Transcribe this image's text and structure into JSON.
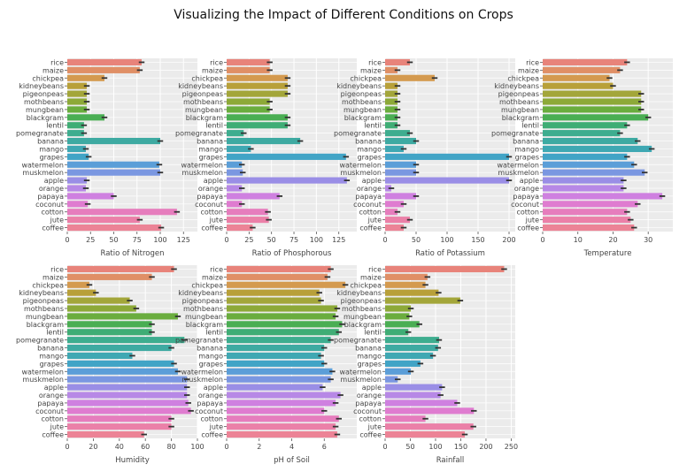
{
  "title": "Visualizing the Impact of Different Conditions on Crops",
  "chart_data": {
    "type": "bar",
    "orientation": "horizontal",
    "grid": true,
    "error_bars": true,
    "categories": [
      "rice",
      "maize",
      "chickpea",
      "kidneybeans",
      "pigeonpeas",
      "mothbeans",
      "mungbean",
      "blackgram",
      "lentil",
      "pomegranate",
      "banana",
      "mango",
      "grapes",
      "watermelon",
      "muskmelon",
      "apple",
      "orange",
      "papaya",
      "coconut",
      "cotton",
      "jute",
      "coffee"
    ],
    "palette": [
      "#e8837a",
      "#e08f66",
      "#d49a4f",
      "#b8a039",
      "#a3a63a",
      "#8da938",
      "#6aad3e",
      "#4aae53",
      "#3fad75",
      "#3ead8f",
      "#3eaaa2",
      "#3fa8b3",
      "#41a4c6",
      "#5b9ed8",
      "#7a97e1",
      "#9a8ee6",
      "#b788e6",
      "#cf80e0",
      "#df7cd0",
      "#e67dbd",
      "#eb80a8",
      "#ec8396"
    ],
    "panels": [
      {
        "xlabel": "Ratio of Nitrogen",
        "xlim": [
          0,
          140
        ],
        "ticks": [
          0,
          25,
          50,
          75,
          100,
          125
        ],
        "values": [
          80,
          78,
          40,
          21,
          21,
          21,
          21,
          40,
          18,
          18,
          100,
          20,
          23,
          99,
          100,
          21,
          20,
          50,
          22,
          118,
          78,
          101
        ]
      },
      {
        "xlabel": "Ratio of Phosphorous",
        "xlim": [
          0,
          145
        ],
        "ticks": [
          0,
          25,
          50,
          75,
          100,
          125
        ],
        "values": [
          48,
          48,
          68,
          68,
          68,
          48,
          48,
          68,
          68,
          19,
          82,
          27,
          133,
          17,
          18,
          134,
          17,
          59,
          17,
          46,
          47,
          29
        ]
      },
      {
        "xlabel": "Ratio of Potassium",
        "xlim": [
          0,
          210
        ],
        "ticks": [
          0,
          50,
          100,
          150,
          200
        ],
        "values": [
          40,
          20,
          80,
          20,
          20,
          20,
          20,
          20,
          20,
          40,
          50,
          30,
          200,
          50,
          50,
          200,
          10,
          50,
          30,
          20,
          40,
          30
        ]
      },
      {
        "xlabel": "Temperature",
        "xlim": [
          0,
          37
        ],
        "ticks": [
          0,
          10,
          20,
          30
        ],
        "values": [
          24,
          22,
          19,
          20,
          28,
          28,
          28,
          30,
          24,
          22,
          27,
          31,
          24,
          26,
          29,
          23,
          23,
          34,
          27,
          24,
          25,
          26
        ]
      },
      {
        "xlabel": "Humidity",
        "xlim": [
          0,
          100
        ],
        "ticks": [
          0,
          20,
          40,
          60,
          80,
          100
        ],
        "values": [
          82,
          65,
          17,
          22,
          48,
          53,
          85,
          65,
          65,
          90,
          80,
          50,
          82,
          85,
          92,
          92,
          92,
          93,
          95,
          80,
          80,
          59
        ]
      },
      {
        "xlabel": "pH of Soil",
        "xlim": [
          0,
          8
        ],
        "ticks": [
          0,
          2,
          4,
          6
        ],
        "values": [
          6.4,
          6.2,
          7.3,
          5.7,
          5.8,
          6.8,
          6.7,
          7.1,
          6.9,
          6.4,
          6.0,
          5.8,
          6.0,
          6.5,
          6.4,
          5.9,
          7.0,
          6.7,
          6.0,
          6.9,
          6.7,
          6.8
        ]
      },
      {
        "xlabel": "Rainfall",
        "xlim": [
          0,
          258
        ],
        "ticks": [
          0,
          50,
          100,
          150,
          200,
          250
        ],
        "values": [
          236,
          84,
          80,
          106,
          149,
          51,
          48,
          68,
          46,
          107,
          105,
          95,
          70,
          51,
          25,
          113,
          110,
          143,
          176,
          80,
          175,
          158
        ]
      }
    ]
  }
}
